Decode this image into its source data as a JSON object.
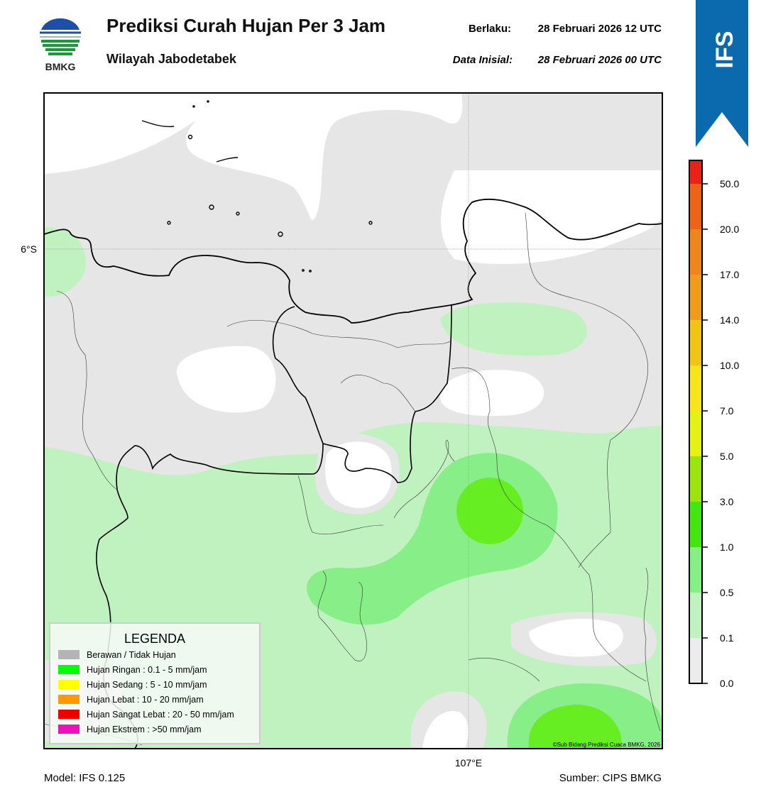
{
  "header": {
    "logo_text": "BMKG",
    "title": "Prediksi Curah Hujan Per 3 Jam",
    "subtitle": "Wilayah Jabodetabek",
    "valid_label": "Berlaku:",
    "valid_time": "28 Februari 2026 12 UTC",
    "init_label": "Data Inisial:",
    "init_time": "28 Februari 2026 00 UTC",
    "badge": "IFS"
  },
  "map": {
    "lat_label": "6°S",
    "lon_label": "107°E",
    "credit": "©Sub Bidang Prediksi Cuaca BMKG, 2026"
  },
  "legend": {
    "title": "LEGENDA",
    "items": [
      {
        "label": "Berawan / Tidak Hujan",
        "color": "#b4b4b4"
      },
      {
        "label": "Hujan Ringan : 0.1 - 5 mm/jam",
        "color": "#00ff00"
      },
      {
        "label": "Hujan Sedang : 5 - 10 mm/jam",
        "color": "#ffff00"
      },
      {
        "label": "Hujan Lebat : 10 - 20 mm/jam",
        "color": "#ff9900"
      },
      {
        "label": "Hujan Sangat Lebat : 20 - 50 mm/jam",
        "color": "#ee0000"
      },
      {
        "label": "Hujan Ekstrem : >50 mm/jam",
        "color": "#ee11bb"
      }
    ]
  },
  "colorbar": {
    "ticks": [
      {
        "value": 0,
        "label": "0.0"
      },
      0.1,
      0.5,
      {
        "value": 1,
        "label": "1.0"
      },
      {
        "value": 3,
        "label": "3.0"
      },
      {
        "value": 5,
        "label": "5.0"
      },
      {
        "value": 7,
        "label": "7.0"
      },
      {
        "value": 10,
        "label": "10.0"
      },
      {
        "value": 14,
        "label": "14.0"
      },
      {
        "value": 17,
        "label": "17.0"
      },
      {
        "value": 20,
        "label": "20.0"
      },
      {
        "value": 50,
        "label": "50.0"
      }
    ],
    "colors": [
      "#ececec",
      "#bff2bf",
      "#86ef86",
      "#44e612",
      "#9be410",
      "#e3f214",
      "#f7e41a",
      "#f0c414",
      "#ef9c1c",
      "#ee861c",
      "#ec6418",
      "#e82216",
      "#e81cb4"
    ]
  },
  "footer": {
    "model": "Model: IFS 0.125",
    "source": "Sumber: CIPS BMKG"
  }
}
